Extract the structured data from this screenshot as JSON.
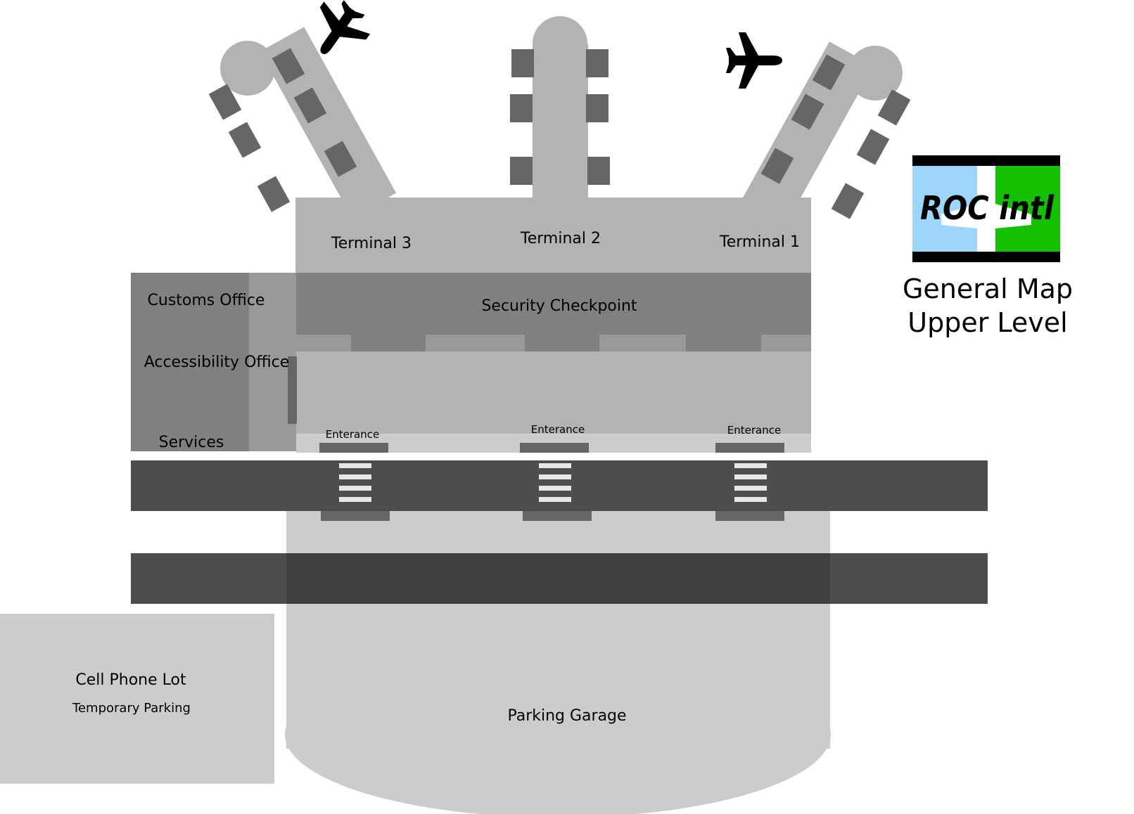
{
  "map": {
    "terminals": {
      "t3": "Terminal 3",
      "t2": "Terminal 2",
      "t1": "Terminal 1"
    },
    "areas": {
      "customs": "Customs Office",
      "accessibility": "Accessibility Office",
      "services": "Services",
      "security": "Security Checkpoint",
      "cell_lot": "Cell Phone Lot",
      "temp_parking": "Temporary Parking",
      "garage": "Parking Garage"
    },
    "entrances": {
      "left": "Enterance",
      "center": "Enterance",
      "right": "Enterance"
    },
    "logo": {
      "text": "ROC intl",
      "left_color": "#9ed6fb",
      "right_color": "#14c100"
    },
    "legend": {
      "line1": "General Map",
      "line2": "Upper Level"
    },
    "icons": [
      "airplane-icon",
      "airplane-icon"
    ]
  }
}
